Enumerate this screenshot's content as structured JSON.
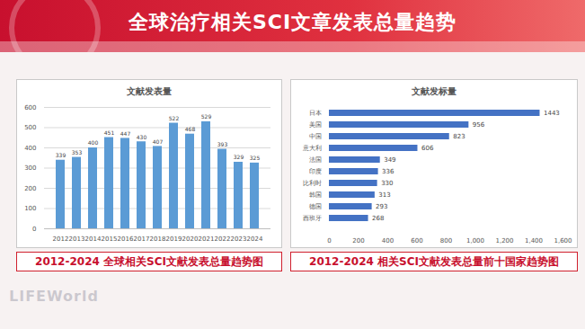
{
  "header": {
    "title": "全球治疗相关SCI文章发表总量趋势",
    "logo": "LIFEWorld"
  },
  "chart_data": [
    {
      "type": "bar",
      "title": "文献发表量",
      "caption": "2012-2024 全球相关SCI文献发表总量趋势图",
      "categories": [
        "2012",
        "2013",
        "2014",
        "2015",
        "2016",
        "2017",
        "2018",
        "2019",
        "2020",
        "2021",
        "2022",
        "2023",
        "2024"
      ],
      "values": [
        339,
        353,
        400,
        451,
        447,
        430,
        407,
        522,
        468,
        529,
        393,
        329,
        325
      ],
      "color": "#5b9bd5",
      "ylim": [
        0,
        600
      ],
      "yticks": [
        0,
        100,
        200,
        300,
        400,
        500,
        600
      ],
      "grid": true,
      "data_labels": true
    },
    {
      "type": "bar",
      "title": "文献发标量",
      "orientation": "horizontal",
      "caption": "2012-2024 相关SCI文献发表总量前十国家趋势图",
      "categories": [
        "日本",
        "美国",
        "中国",
        "意大利",
        "法国",
        "印度",
        "比利时",
        "韩国",
        "德国",
        "西班牙"
      ],
      "values": [
        1443,
        956,
        823,
        606,
        349,
        336,
        330,
        313,
        293,
        268
      ],
      "color": "#4472c4",
      "xlim": [
        0,
        1600
      ],
      "xticks": [
        0,
        200,
        400,
        600,
        800,
        1000,
        1200,
        1400,
        1600
      ],
      "grid": false,
      "data_labels": true
    }
  ]
}
